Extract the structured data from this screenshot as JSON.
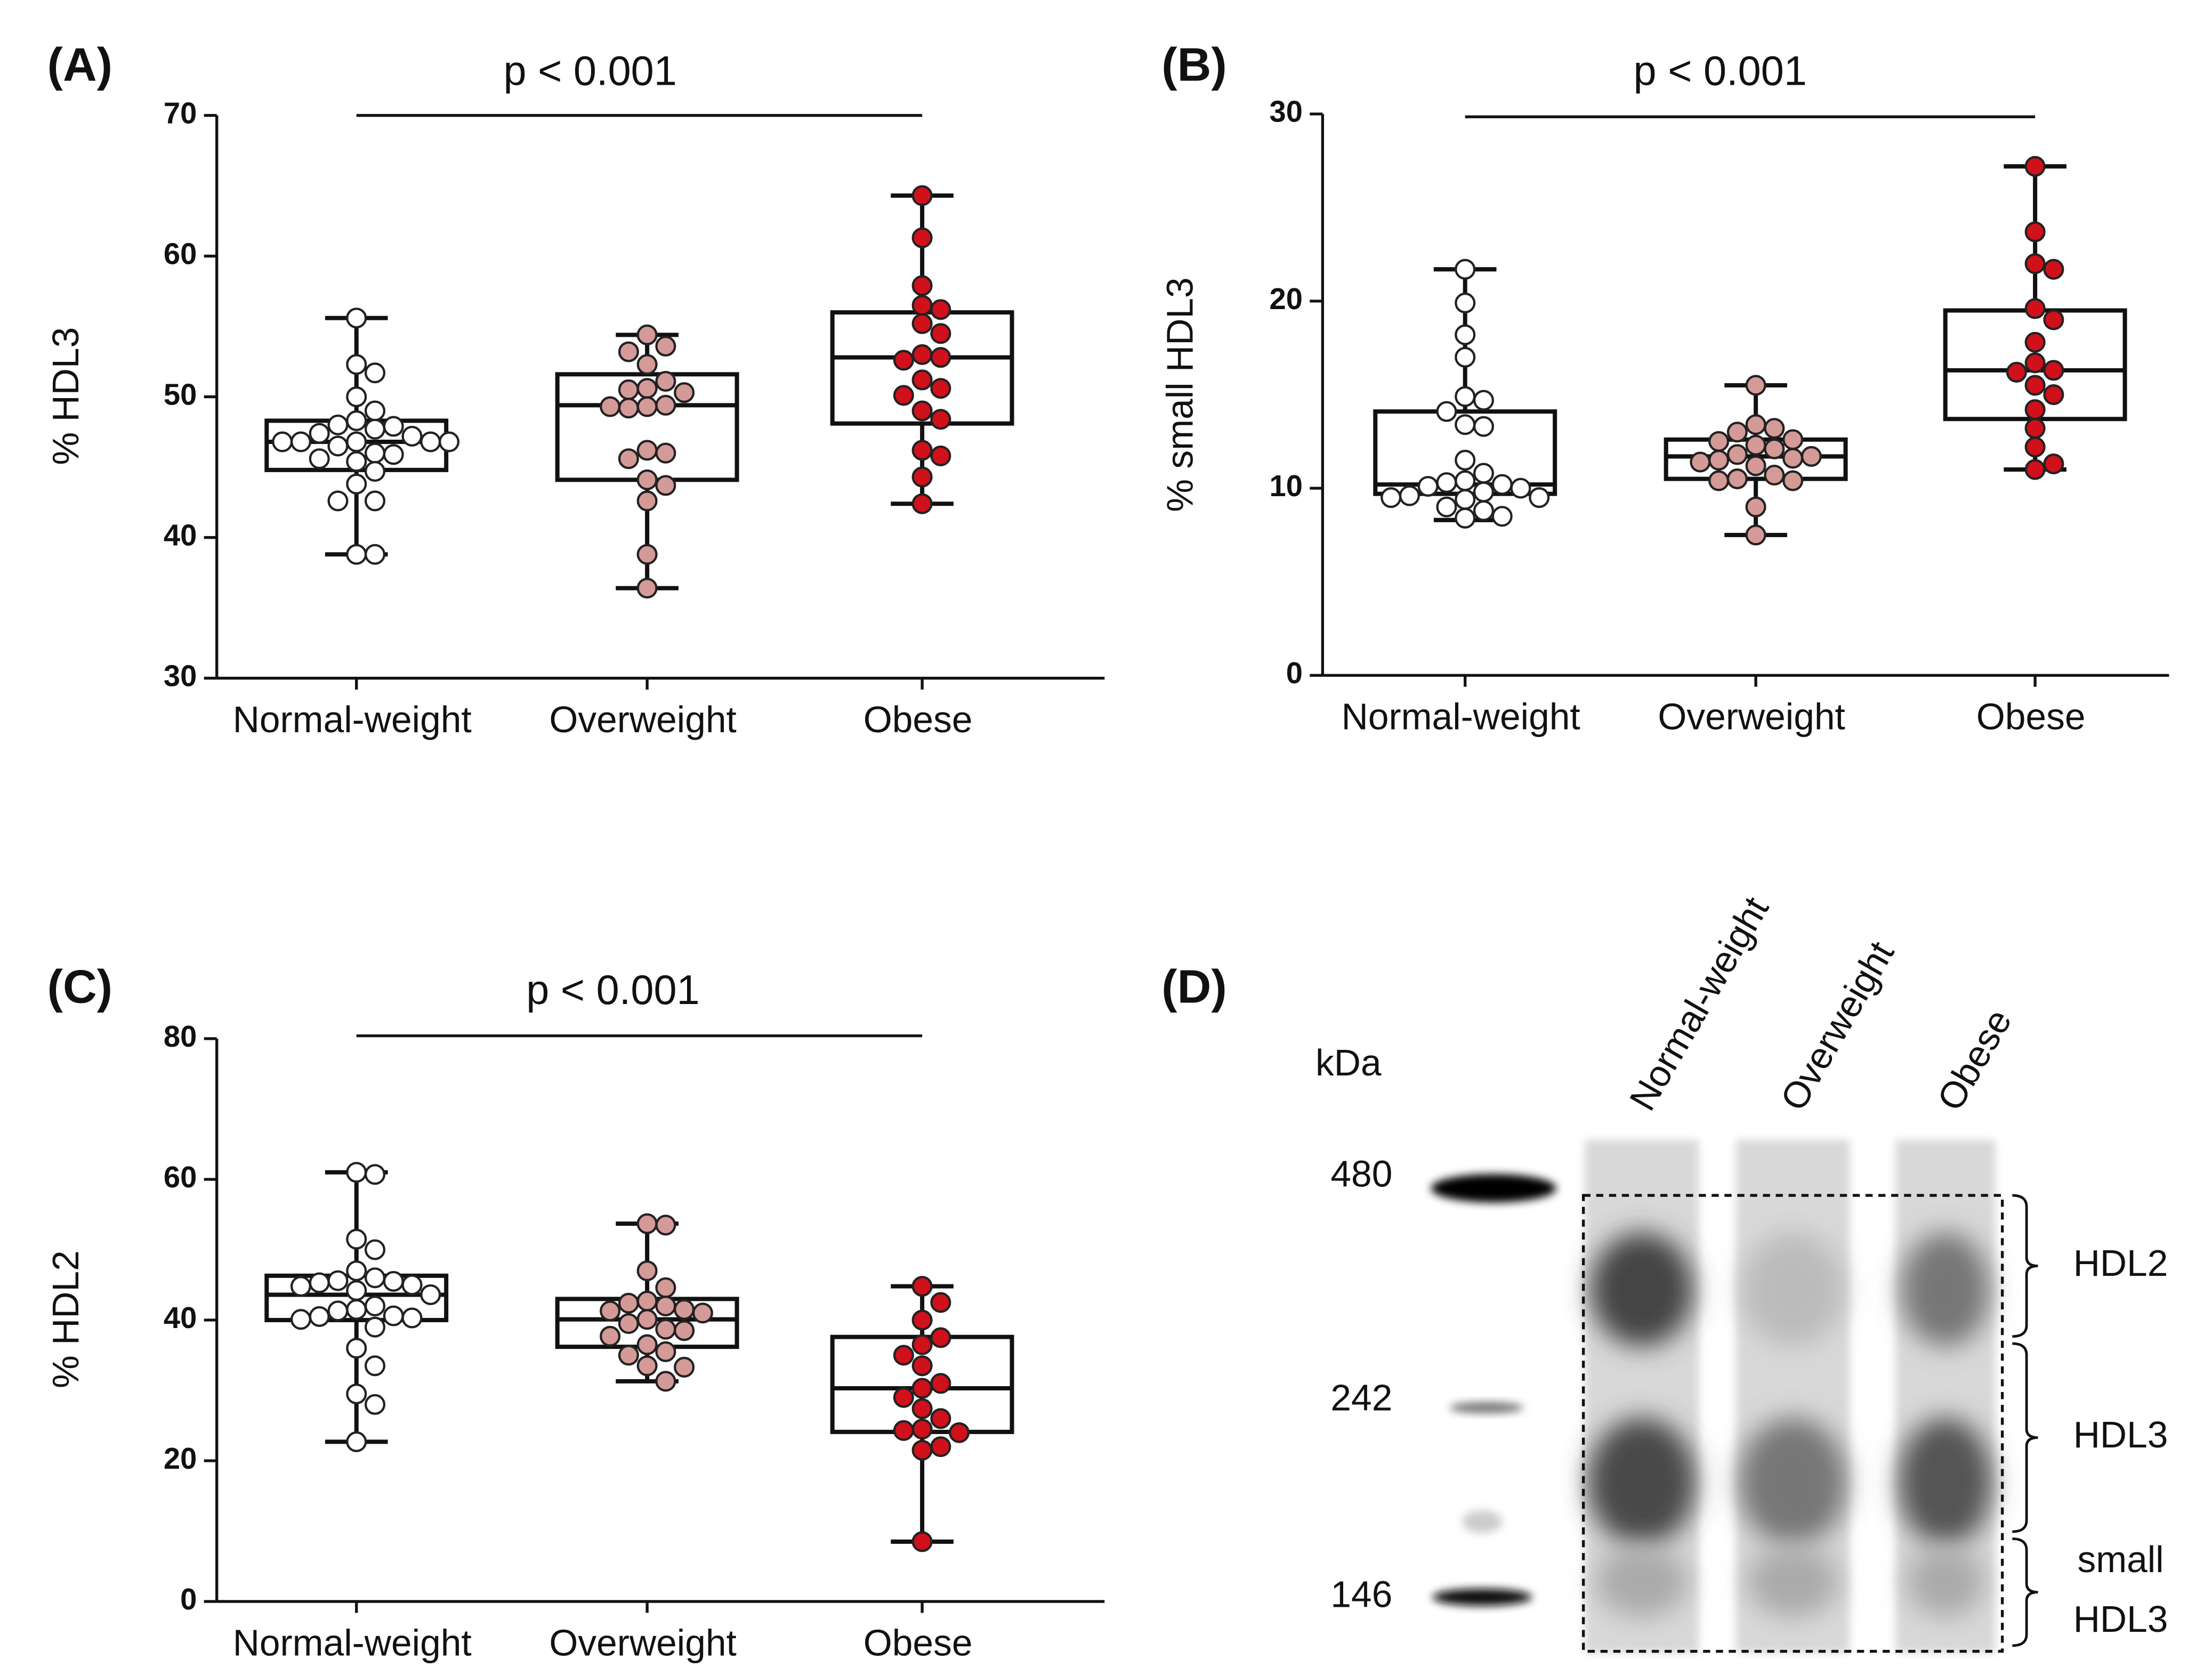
{
  "chart_data": [
    {
      "type": "box",
      "panel": "(A)",
      "annotation": "p < 0.001",
      "ylabel": "% HDL3",
      "categories": [
        "Normal-weight",
        "Overweight",
        "Obese"
      ],
      "colors": [
        "#ffffff",
        "#d49a97",
        "#d0101a"
      ],
      "ylim": [
        30,
        70
      ],
      "yticks": [
        30,
        40,
        50,
        60,
        70
      ],
      "boxes": [
        {
          "min": 38.8,
          "q1": 44.8,
          "median": 46.8,
          "q3": 48.3,
          "max": 55.6
        },
        {
          "min": 36.4,
          "q1": 44.1,
          "median": 49.4,
          "q3": 51.6,
          "max": 54.4
        },
        {
          "min": 42.4,
          "q1": 48.1,
          "median": 52.8,
          "q3": 56.0,
          "max": 64.3
        }
      ],
      "points": [
        [
          55.6,
          52.3,
          51.7,
          50.0,
          49.0,
          48.3,
          48.0,
          47.9,
          47.7,
          47.4,
          47.2,
          46.8,
          46.8,
          46.8,
          46.8,
          46.8,
          46.5,
          46.0,
          45.9,
          45.6,
          45.4,
          44.7,
          43.8,
          42.6,
          42.6,
          38.8,
          38.8
        ],
        [
          54.4,
          53.6,
          53.2,
          52.3,
          51.1,
          50.6,
          50.5,
          50.3,
          49.4,
          49.3,
          49.3,
          49.2,
          46.2,
          46.0,
          45.6,
          44.1,
          43.7,
          42.6,
          38.8,
          36.4
        ],
        [
          64.3,
          61.3,
          57.9,
          56.5,
          56.2,
          55.2,
          54.5,
          53.0,
          52.8,
          52.6,
          51.2,
          50.6,
          50.1,
          49.0,
          48.4,
          46.2,
          45.8,
          44.3,
          42.4
        ]
      ]
    },
    {
      "type": "box",
      "panel": "(B)",
      "annotation": "p < 0.001",
      "ylabel": "% small HDL3",
      "categories": [
        "Normal-weight",
        "Overweight",
        "Obese"
      ],
      "colors": [
        "#ffffff",
        "#d49a97",
        "#d0101a"
      ],
      "ylim": [
        0,
        30
      ],
      "yticks": [
        0,
        10,
        20,
        30
      ],
      "boxes": [
        {
          "min": 8.3,
          "q1": 9.7,
          "median": 10.2,
          "q3": 14.1,
          "max": 21.7
        },
        {
          "min": 7.5,
          "q1": 10.5,
          "median": 11.7,
          "q3": 12.6,
          "max": 15.5
        },
        {
          "min": 11.0,
          "q1": 13.7,
          "median": 16.3,
          "q3": 19.5,
          "max": 27.2
        }
      ],
      "points": [
        [
          21.7,
          19.9,
          18.2,
          17.0,
          14.9,
          14.7,
          14.1,
          13.4,
          13.3,
          11.5,
          10.8,
          10.4,
          10.3,
          10.2,
          10.1,
          10.0,
          9.8,
          9.6,
          9.5,
          9.5,
          9.4,
          9.0,
          8.8,
          8.5,
          8.4
        ],
        [
          15.5,
          13.4,
          13.2,
          13.0,
          12.6,
          12.5,
          12.3,
          12.1,
          11.8,
          11.7,
          11.6,
          11.5,
          11.4,
          11.2,
          10.7,
          10.5,
          10.4,
          10.4,
          9.0,
          7.5
        ],
        [
          27.2,
          23.7,
          22.0,
          21.7,
          19.6,
          19.0,
          17.8,
          16.7,
          16.3,
          16.2,
          15.5,
          15.0,
          14.2,
          13.2,
          12.2,
          11.3,
          11.0
        ]
      ]
    },
    {
      "type": "box",
      "panel": "(C)",
      "annotation": "p < 0.001",
      "ylabel": "% HDL2",
      "categories": [
        "Normal-weight",
        "Overweight",
        "Obese"
      ],
      "colors": [
        "#ffffff",
        "#d49a97",
        "#d0101a"
      ],
      "ylim": [
        0,
        80
      ],
      "yticks": [
        0,
        20,
        40,
        60,
        80
      ],
      "boxes": [
        {
          "min": 22.7,
          "q1": 40.0,
          "median": 43.6,
          "q3": 46.3,
          "max": 61.0
        },
        {
          "min": 31.3,
          "q1": 36.2,
          "median": 40.1,
          "q3": 43.0,
          "max": 53.7
        },
        {
          "min": 8.5,
          "q1": 24.1,
          "median": 30.3,
          "q3": 37.6,
          "max": 44.8
        }
      ],
      "points": [
        [
          61.0,
          60.7,
          51.5,
          50.0,
          47.0,
          46.0,
          45.6,
          45.5,
          45.3,
          45.0,
          44.8,
          44.2,
          43.6,
          42.0,
          41.5,
          41.3,
          40.6,
          40.5,
          40.3,
          40.1,
          39.0,
          36.0,
          33.5,
          29.5,
          28.0,
          22.7
        ],
        [
          53.7,
          53.5,
          47.0,
          44.6,
          42.7,
          42.4,
          42.0,
          41.5,
          41.3,
          41.0,
          40.1,
          39.5,
          38.7,
          38.5,
          37.7,
          36.5,
          35.5,
          35.0,
          33.5,
          33.3,
          31.3
        ],
        [
          44.8,
          42.5,
          40.0,
          37.5,
          36.5,
          35.0,
          33.5,
          31.0,
          30.3,
          29.0,
          27.4,
          26.0,
          24.5,
          24.3,
          24.0,
          22.0,
          21.5,
          8.5
        ]
      ]
    },
    {
      "type": "gel",
      "panel": "(D)",
      "unit": "kDa",
      "markers": [
        480,
        242,
        146
      ],
      "lanes": [
        "Normal-weight",
        "Overweight",
        "Obese"
      ],
      "bands": [
        {
          "lines": [
            "HDL2"
          ]
        },
        {
          "lines": [
            "HDL3"
          ]
        },
        {
          "lines": [
            "small",
            "HDL3"
          ]
        }
      ]
    }
  ]
}
